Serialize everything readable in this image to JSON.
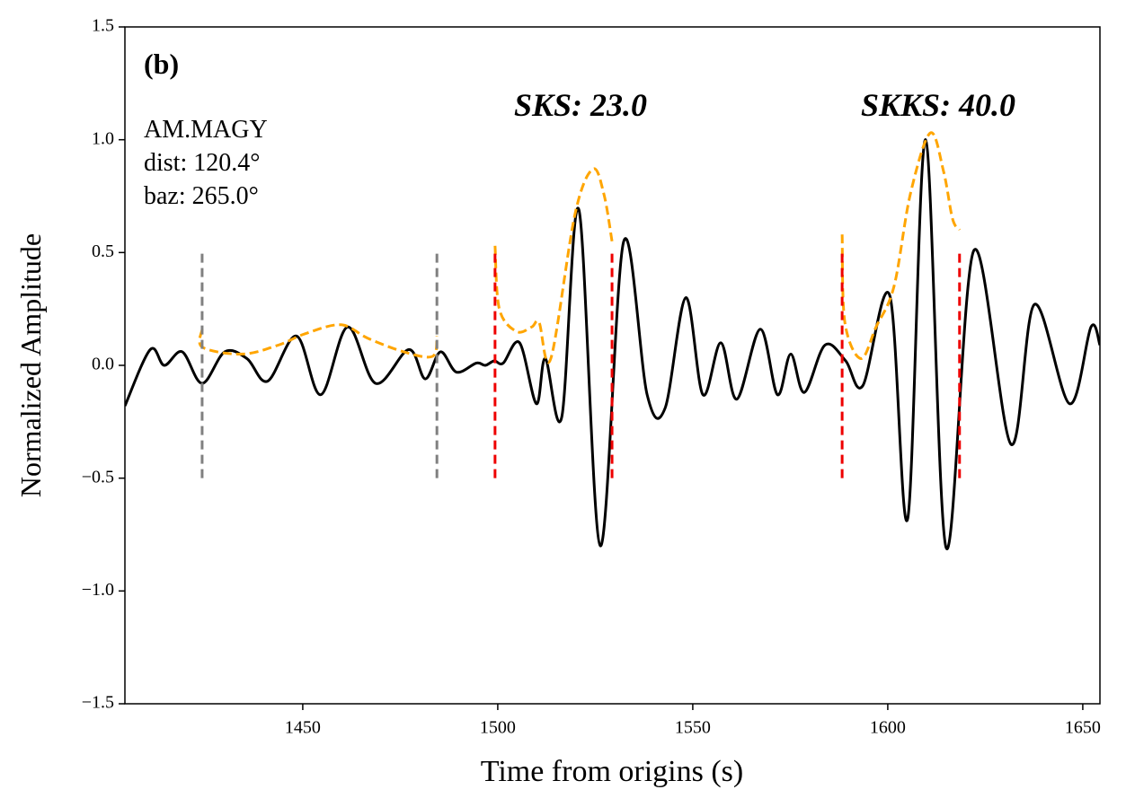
{
  "chart_data": {
    "type": "line",
    "xlabel": "Time from origins (s)",
    "ylabel": "Normalized Amplitude",
    "xlim": [
      1404.4,
      1654.4
    ],
    "ylim": [
      -1.5,
      1.5
    ],
    "xticks": [
      1450,
      1500,
      1550,
      1600,
      1650
    ],
    "yticks": [
      {
        "value": -1.5,
        "label": "−1.5"
      },
      {
        "value": -1,
        "label": "−1.0"
      },
      {
        "value": -0.5,
        "label": "−0.5"
      },
      {
        "value": 0,
        "label": "0.0"
      },
      0.5,
      {
        "value": 1,
        "label": "1.0"
      },
      1.5
    ],
    "annotations": [
      "(b)",
      "AM.MAGY",
      "dist: 120.4°",
      "baz: 265.0°",
      "SKS: 23.0",
      "SKKS: 40.0"
    ],
    "series": [
      {
        "color": "#000000",
        "dash": false,
        "x": [
          1404.4,
          1410.9,
          1414.5,
          1419.1,
          1424.2,
          1430.0,
          1435.7,
          1441.0,
          1448.4,
          1454.6,
          1461.5,
          1468.7,
          1477.2,
          1481.4,
          1485.3,
          1489.4,
          1494.5,
          1496.8,
          1499.1,
          1501.4,
          1505.6,
          1509.9,
          1512.2,
          1516.4,
          1520.8,
          1526.3,
          1532.3,
          1538.3,
          1542.9,
          1548.2,
          1552.6,
          1557.2,
          1561.3,
          1567.3,
          1571.7,
          1575.1,
          1578.6,
          1583.9,
          1589.2,
          1593.6,
          1600.5,
          1605.1,
          1609.7,
          1615.0,
          1622.1,
          1631.6,
          1637.6,
          1646.6,
          1652.1,
          1654.4
        ],
        "values": [
          -0.18,
          0.07,
          0.0,
          0.06,
          -0.08,
          0.06,
          0.03,
          -0.07,
          0.13,
          -0.13,
          0.17,
          -0.08,
          0.07,
          -0.06,
          0.06,
          -0.03,
          0.01,
          0,
          0.02,
          0.01,
          0.1,
          -0.17,
          0.03,
          -0.23,
          0.69,
          -0.8,
          0.55,
          -0.13,
          -0.19,
          0.3,
          -0.13,
          0.1,
          -0.15,
          0.16,
          -0.13,
          0.05,
          -0.12,
          0.09,
          0.02,
          -0.09,
          0.31,
          -0.68,
          1.0,
          -0.81,
          0.51,
          -0.35,
          0.27,
          -0.17,
          0.17,
          0.09
        ]
      },
      {
        "color": "#ffa500",
        "dash": true,
        "x": [
          1424.2,
          1424.3,
          1434.5,
          1443.8,
          1450.6,
          1459.8,
          1466.7,
          1475.9,
          1483.3,
          1484.4,
          null,
          1499.3,
          1500.4,
          1504.8,
          1508.7,
          1510.6,
          1513.6,
          1519.8,
          1524.4,
          1527.2,
          1529.3,
          null,
          1588.3,
          1589.0,
          1593.1,
          1597.0,
          1601.6,
          1605.8,
          1610.9,
          1614.3,
          1616.6,
          1618.4
        ],
        "values": [
          0.16,
          0.08,
          0.05,
          0.09,
          0.14,
          0.18,
          0.12,
          0.06,
          0.04,
          0.13,
          null,
          0.53,
          0.25,
          0.15,
          0.17,
          0.19,
          0.03,
          0.67,
          0.87,
          0.76,
          0.55,
          null,
          0.58,
          0.19,
          0.03,
          0.17,
          0.35,
          0.76,
          1.03,
          0.86,
          0.65,
          0.6
        ]
      }
    ],
    "vlines": [
      {
        "x": 1424.2,
        "ymin": -0.5,
        "ymax": 0.5,
        "color": "#808080"
      },
      {
        "x": 1484.4,
        "ymin": -0.5,
        "ymax": 0.5,
        "color": "#808080"
      },
      {
        "x": 1499.3,
        "ymin": -0.5,
        "ymax": 0.5,
        "color": "#ee0000"
      },
      {
        "x": 1529.3,
        "ymin": -0.5,
        "ymax": 0.5,
        "color": "#ee0000"
      },
      {
        "x": 1588.3,
        "ymin": -0.5,
        "ymax": 0.5,
        "color": "#ee0000"
      },
      {
        "x": 1618.4,
        "ymin": -0.5,
        "ymax": 0.5,
        "color": "#ee0000"
      }
    ]
  }
}
